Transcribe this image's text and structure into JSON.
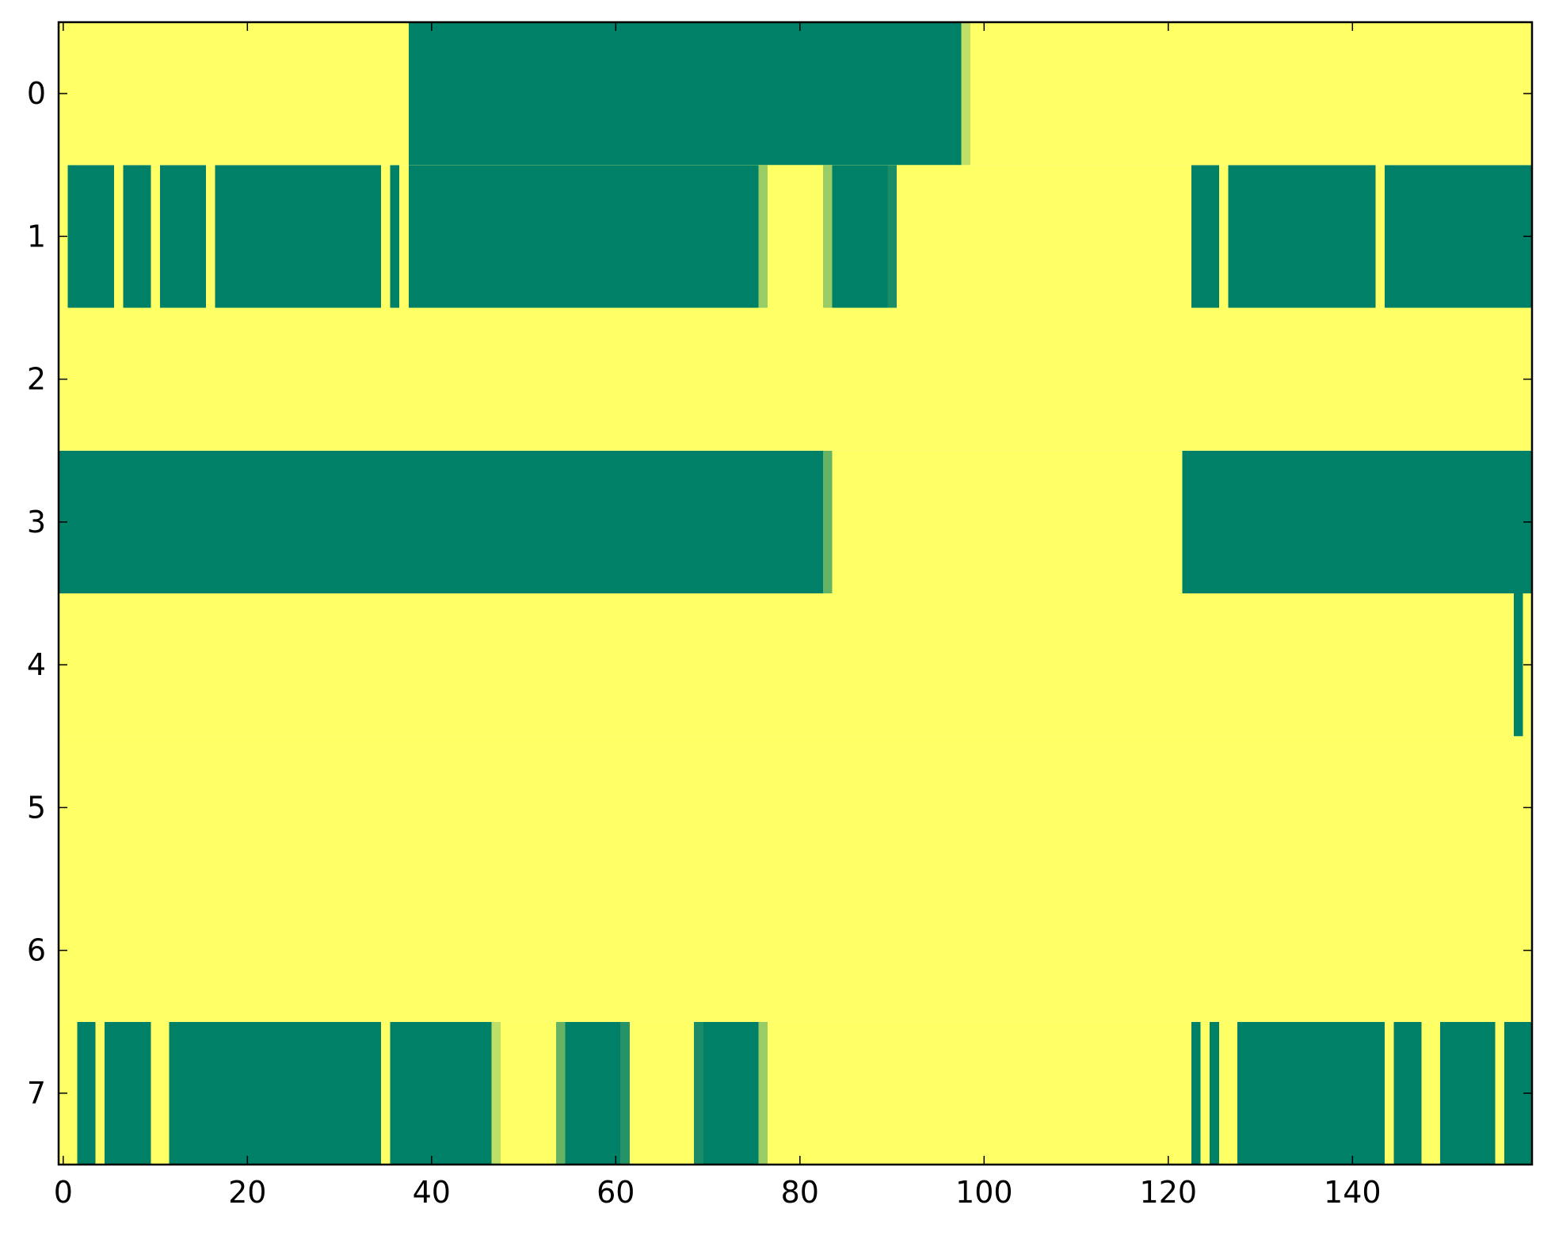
{
  "chart_data": {
    "type": "heatmap",
    "title": "",
    "xlabel": "",
    "ylabel": "",
    "xlim": [
      -0.5,
      159.5
    ],
    "ylim": [
      7.5,
      -0.5
    ],
    "x_ticks": [
      "0",
      "20",
      "40",
      "60",
      "80",
      "100",
      "120",
      "140"
    ],
    "x_tick_values": [
      0,
      20,
      40,
      60,
      80,
      100,
      120,
      140
    ],
    "y_ticks": [
      "0",
      "1",
      "2",
      "3",
      "4",
      "5",
      "6",
      "7"
    ],
    "y_tick_values": [
      0,
      1,
      2,
      3,
      4,
      5,
      6,
      7
    ],
    "n_cols": 160,
    "n_rows": 8,
    "value_range": [
      0,
      1
    ],
    "colormap": "summer",
    "colors": {
      "low": "#008066",
      "high": "#ffff66",
      "axes": "#000000",
      "background": "#ffffff"
    },
    "grid": false,
    "legend": "none",
    "rows": [
      {
        "row": 0,
        "low_runs": [
          [
            38,
            97,
            0
          ],
          [
            98,
            98,
            0.75
          ]
        ]
      },
      {
        "row": 1,
        "low_runs": [
          [
            1,
            5,
            0
          ],
          [
            7,
            9,
            0
          ],
          [
            11,
            15,
            0
          ],
          [
            17,
            34,
            0
          ],
          [
            36,
            36,
            0
          ],
          [
            38,
            75,
            0
          ],
          [
            76,
            76,
            0.6
          ],
          [
            83,
            83,
            0.6
          ],
          [
            84,
            89,
            0
          ],
          [
            90,
            90,
            0.1
          ],
          [
            123,
            125,
            0
          ],
          [
            127,
            142,
            0
          ],
          [
            144,
            159,
            0
          ]
        ]
      },
      {
        "row": 2,
        "low_runs": []
      },
      {
        "row": 3,
        "low_runs": [
          [
            0,
            82,
            0
          ],
          [
            83,
            83,
            0.4
          ],
          [
            122,
            159,
            0
          ]
        ]
      },
      {
        "row": 4,
        "low_runs": [
          [
            158,
            158,
            0
          ]
        ]
      },
      {
        "row": 5,
        "low_runs": []
      },
      {
        "row": 6,
        "low_runs": []
      },
      {
        "row": 7,
        "low_runs": [
          [
            2,
            3,
            0
          ],
          [
            5,
            9,
            0
          ],
          [
            12,
            34,
            0
          ],
          [
            36,
            46,
            0
          ],
          [
            47,
            47,
            0.75
          ],
          [
            54,
            54,
            0.4
          ],
          [
            55,
            60,
            0
          ],
          [
            61,
            61,
            0.15
          ],
          [
            69,
            69,
            0.1
          ],
          [
            70,
            75,
            0
          ],
          [
            76,
            76,
            0.6
          ],
          [
            123,
            123,
            0
          ],
          [
            125,
            125,
            0
          ],
          [
            128,
            143,
            0
          ],
          [
            145,
            147,
            0
          ],
          [
            150,
            155,
            0
          ],
          [
            157,
            159,
            0
          ]
        ]
      }
    ]
  }
}
